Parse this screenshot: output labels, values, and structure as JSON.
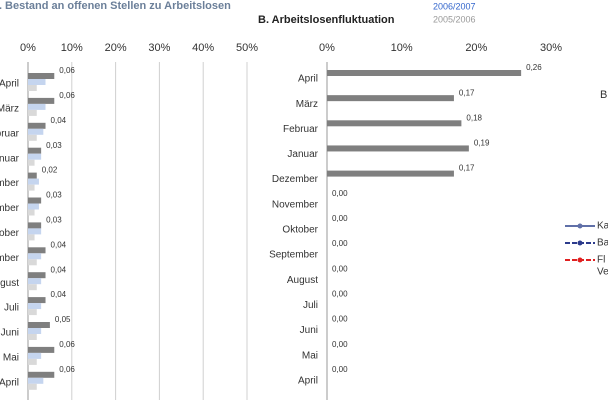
{
  "chart_data": [
    {
      "type": "hbar",
      "title": "A. Bestand an offenen Stellen zu Arbeitslosen",
      "categories": [
        "April",
        "März",
        "Februar",
        "Januar",
        "Dezember",
        "November",
        "Oktober",
        "September",
        "August",
        "Juli",
        "Juni",
        "Mai",
        "April"
      ],
      "series": [
        {
          "name": "2006/2007",
          "color": "#7f7f7f",
          "values": [
            0.06,
            0.06,
            0.04,
            0.03,
            0.02,
            0.03,
            0.03,
            0.04,
            0.04,
            0.04,
            0.05,
            0.06,
            0.06
          ],
          "value_labels": [
            "0,06",
            "0,06",
            "0,04",
            "0,03",
            "0,02",
            "0,03",
            "0,03",
            "0,04",
            "0,04",
            "0,04",
            "0,05",
            "0,06",
            "0,06"
          ]
        },
        {
          "name": "2005/2006",
          "color": "#c5d5ef",
          "values": [
            0.04,
            0.04,
            0.035,
            0.03,
            0.025,
            0.025,
            0.03,
            0.03,
            0.03,
            0.03,
            0.03,
            0.03,
            0.035
          ]
        },
        {
          "color": "#d9d9d9",
          "values": [
            0.02,
            0.02,
            0.02,
            0.015,
            0.015,
            0.015,
            0.015,
            0.02,
            0.02,
            0.02,
            0.02,
            0.02,
            0.02
          ]
        }
      ],
      "xlim": [
        0,
        0.5
      ],
      "xticks": [
        {
          "value": 0,
          "label": "0%"
        },
        {
          "value": 0.1,
          "label": "10%"
        },
        {
          "value": 0.2,
          "label": "20%"
        },
        {
          "value": 0.3,
          "label": "30%"
        },
        {
          "value": 0.4,
          "label": "40%"
        },
        {
          "value": 0.5,
          "label": "50%"
        }
      ],
      "grid": true
    },
    {
      "type": "hbar",
      "title": "B. Arbeitslosenfluktuation",
      "categories": [
        "April",
        "März",
        "Februar",
        "Januar",
        "Dezember",
        "November",
        "Oktober",
        "September",
        "August",
        "Juli",
        "Juni",
        "Mai",
        "April"
      ],
      "series": [
        {
          "color": "#7f7f7f",
          "values": [
            0.26,
            0.17,
            0.18,
            0.19,
            0.17,
            0,
            0,
            0,
            0,
            0,
            0,
            0,
            0
          ],
          "value_labels": [
            "0,26",
            "0,17",
            "0,18",
            "0,19",
            "0,17",
            "0,00",
            "0,00",
            "0,00",
            "0,00",
            "0,00",
            "0,00",
            "0,00",
            "0,00"
          ]
        }
      ],
      "xlim": [
        0,
        0.3
      ],
      "xticks": [
        {
          "value": 0,
          "label": "0%"
        },
        {
          "value": 0.1,
          "label": "10%"
        },
        {
          "value": 0.2,
          "label": "20%"
        },
        {
          "value": 0.3,
          "label": "30%"
        }
      ],
      "grid": false
    }
  ],
  "cropped_panel": {
    "title": "B",
    "legend": [
      {
        "name": "Ka",
        "color": "#6070a8"
      },
      {
        "name": "Ba",
        "color": "#2c3b8c"
      },
      {
        "name": "Fl",
        "color": "#e02020"
      }
    ],
    "legend_continuation": "Ve"
  }
}
